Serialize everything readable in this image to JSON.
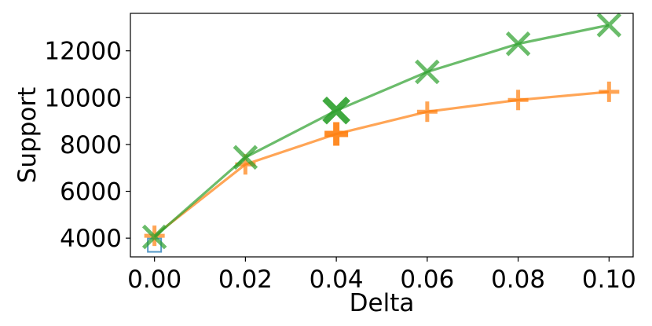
{
  "chart_data": {
    "type": "line",
    "title": "",
    "xlabel": "Delta",
    "ylabel": "Support",
    "xlim": [
      -0.0053,
      0.1053
    ],
    "ylim": [
      3200,
      13600
    ],
    "grid": false,
    "legend": "none",
    "x": [
      0.0,
      0.02,
      0.04,
      0.06,
      0.08,
      0.1
    ],
    "x_tick_labels": [
      "0.00",
      "0.02",
      "0.04",
      "0.06",
      "0.08",
      "0.10"
    ],
    "y_ticks": [
      4000,
      6000,
      8000,
      10000,
      12000
    ],
    "y_tick_labels": [
      "4000",
      "6000",
      "8000",
      "10000",
      "12000"
    ],
    "series": [
      {
        "color": "#ff7f0e",
        "marker": "plus",
        "values": [
          4100,
          7150,
          8450,
          9400,
          9900,
          10250
        ],
        "highlight_index": 2
      },
      {
        "color": "#2ca02c",
        "marker": "x",
        "values": [
          4050,
          7450,
          9450,
          11100,
          12300,
          13100
        ],
        "highlight_index": 2
      }
    ],
    "extra_points": [
      {
        "x": 0.0,
        "y": 3700,
        "marker": "square",
        "color": "#1f77b4"
      }
    ]
  }
}
